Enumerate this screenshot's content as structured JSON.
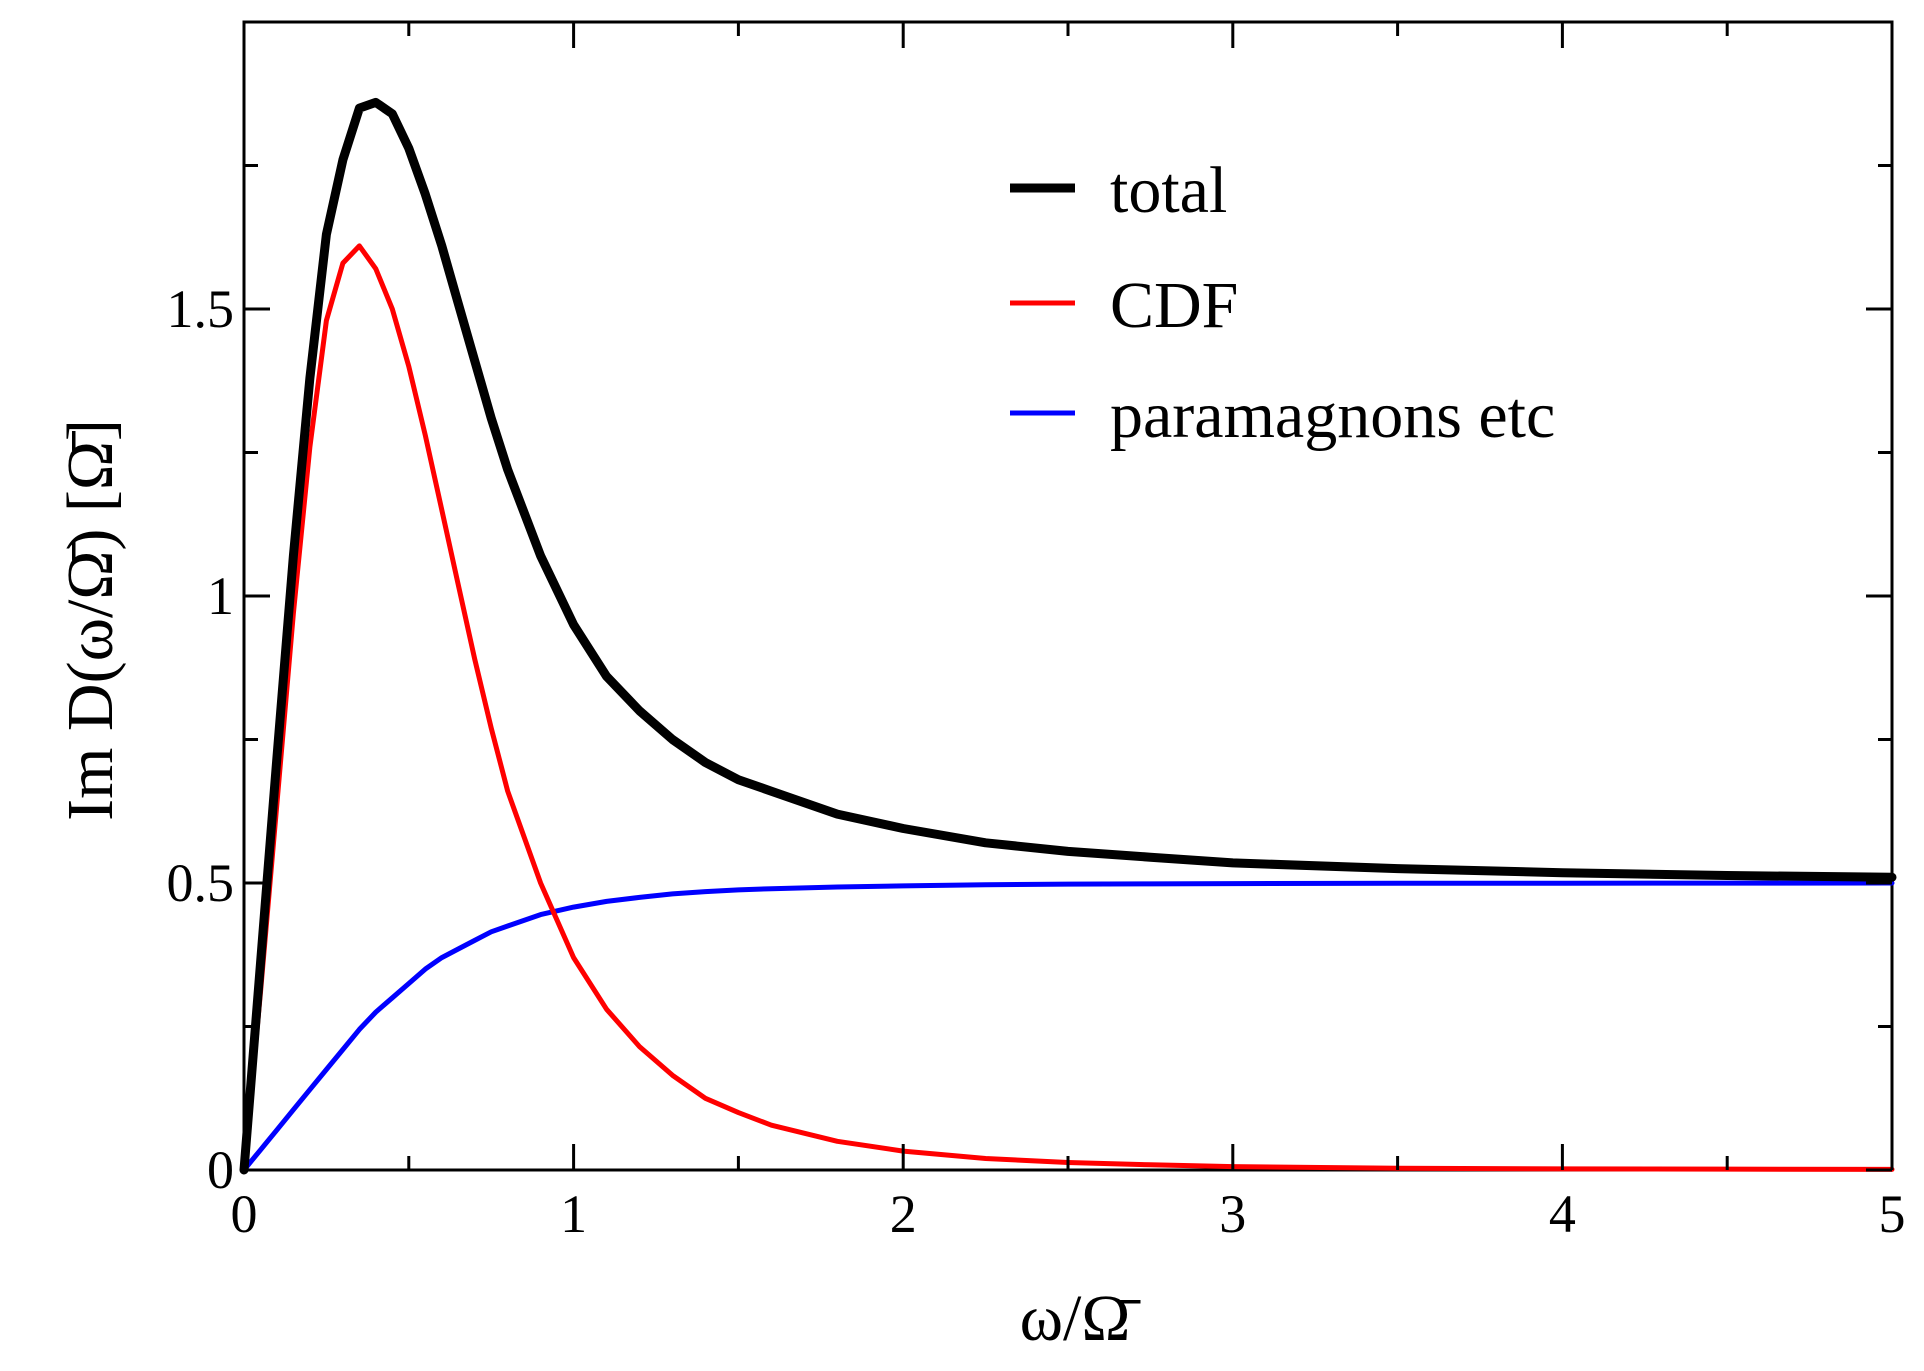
{
  "chart_data": {
    "type": "line",
    "title": "",
    "xlabel": "ω/Ω̄",
    "ylabel": "Im D(ω/Ω̄) [Ω̄]",
    "xlim": [
      0,
      5
    ],
    "ylim": [
      0,
      2
    ],
    "x_ticks": [
      0,
      1,
      2,
      3,
      4,
      5
    ],
    "x_tick_labels": [
      "0",
      "1",
      "2",
      "3",
      "4",
      "5"
    ],
    "y_ticks": [
      0,
      0.5,
      1,
      1.5
    ],
    "y_tick_labels": [
      "0",
      "0.5",
      "1",
      "1.5"
    ],
    "grid": false,
    "legend_position": "top-right",
    "x": [
      0,
      0.05,
      0.1,
      0.15,
      0.2,
      0.25,
      0.3,
      0.35,
      0.4,
      0.45,
      0.5,
      0.55,
      0.6,
      0.65,
      0.7,
      0.75,
      0.8,
      0.9,
      1.0,
      1.1,
      1.2,
      1.3,
      1.4,
      1.5,
      1.6,
      1.8,
      2.0,
      2.25,
      2.5,
      2.75,
      3.0,
      3.5,
      4.0,
      4.5,
      5.0
    ],
    "series": [
      {
        "name": "total",
        "color": "#000000",
        "values": [
          0,
          0.36,
          0.72,
          1.07,
          1.38,
          1.63,
          1.76,
          1.85,
          1.86,
          1.84,
          1.78,
          1.7,
          1.61,
          1.51,
          1.41,
          1.31,
          1.22,
          1.07,
          0.95,
          0.86,
          0.8,
          0.75,
          0.71,
          0.68,
          0.66,
          0.62,
          0.595,
          0.57,
          0.555,
          0.545,
          0.535,
          0.525,
          0.518,
          0.513,
          0.51
        ]
      },
      {
        "name": "CDF",
        "color": "#ff0000",
        "values": [
          0,
          0.31,
          0.64,
          0.97,
          1.26,
          1.48,
          1.58,
          1.61,
          1.57,
          1.5,
          1.4,
          1.28,
          1.15,
          1.02,
          0.89,
          0.77,
          0.66,
          0.5,
          0.37,
          0.28,
          0.215,
          0.165,
          0.125,
          0.1,
          0.078,
          0.05,
          0.033,
          0.02,
          0.013,
          0.009,
          0.006,
          0.003,
          0.002,
          0.0015,
          0.001
        ]
      },
      {
        "name": "paramagnons etc",
        "color": "#0000ff",
        "values": [
          0,
          0.035,
          0.07,
          0.105,
          0.14,
          0.175,
          0.21,
          0.245,
          0.275,
          0.3,
          0.325,
          0.35,
          0.37,
          0.385,
          0.4,
          0.415,
          0.425,
          0.445,
          0.458,
          0.468,
          0.475,
          0.481,
          0.485,
          0.488,
          0.49,
          0.493,
          0.495,
          0.497,
          0.498,
          0.4985,
          0.499,
          0.4995,
          0.4997,
          0.4999,
          0.5
        ]
      }
    ]
  }
}
